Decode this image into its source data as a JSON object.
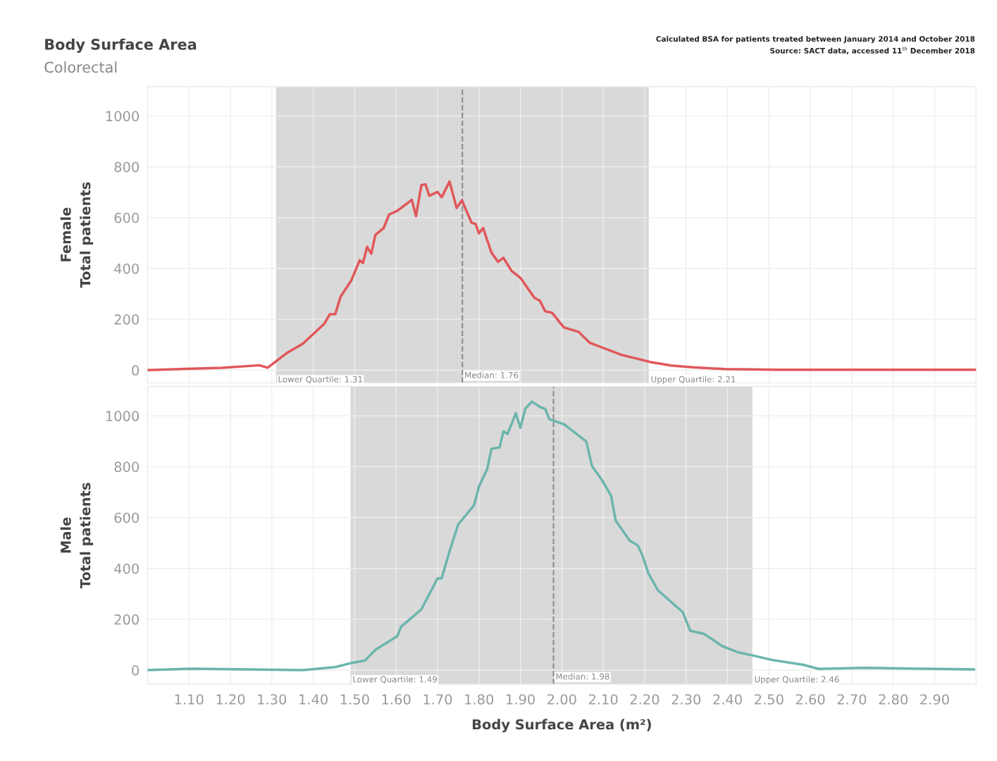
{
  "chart_data": [
    {
      "type": "line",
      "title": "Body Surface Area",
      "subtitle": "Colorectal",
      "ylabel": "Female\nTotal patients",
      "annotations": [
        "Calculated BSA for patients treated between January 2014 and October 2018",
        "Source: SACT data, accessed 11$^{th}$ December 2018",
        {
          "text": "Lower Quartile: 1.31",
          "x": 1.31,
          "y": 0
        },
        {
          "text": "Upper Quartile: 2.21",
          "x": 2.21,
          "y": 0
        }
      ],
      "series": [
        {
          "color": "#e15759",
          "x": [
            1.0,
            1.18,
            1.27,
            1.29,
            1.336,
            1.375,
            1.427,
            1.44,
            1.453,
            1.466,
            1.492,
            1.512,
            1.52,
            1.53,
            1.54,
            1.55,
            1.57,
            1.583,
            1.603,
            1.638,
            1.648,
            1.661,
            1.671,
            1.68,
            1.7,
            1.71,
            1.729,
            1.746,
            1.759,
            1.782,
            1.792,
            1.8,
            1.81,
            1.83,
            1.846,
            1.859,
            1.879,
            1.9,
            1.934,
            1.947,
            1.96,
            1.976,
            2.005,
            2.041,
            2.067,
            2.11,
            2.144,
            2.179,
            2.213,
            2.264,
            2.316,
            2.393,
            2.52,
            3.0
          ],
          "values": [
            0,
            9,
            19,
            9,
            67,
            104,
            183,
            220,
            220,
            289,
            353,
            432,
            421,
            485,
            458,
            532,
            559,
            612,
            627,
            670,
            606,
            728,
            731,
            686,
            701,
            680,
            742,
            638,
            668,
            580,
            575,
            538,
            559,
            463,
            426,
            442,
            390,
            363,
            284,
            273,
            231,
            226,
            168,
            150,
            108,
            81,
            60,
            46,
            32,
            18,
            11,
            4,
            1,
            1
          ]
        }
      ],
      "bands": [
        {
          "axis": "x",
          "from": 1.31,
          "to": 2.21,
          "color": "#d9d9d9"
        }
      ],
      "ref_lines": [
        {
          "axis": "x",
          "value": 1.76,
          "label": "Median: 1.76",
          "color": "#8c8c8c",
          "line_style": "dashed"
        }
      ],
      "xlim": [
        1.0,
        3.0
      ],
      "ylim": [
        -50,
        1115
      ],
      "xticks": [
        {
          "value": 1.1,
          "label": null
        },
        {
          "value": 1.2,
          "label": null
        },
        {
          "value": 1.3,
          "label": null
        },
        {
          "value": 1.4,
          "label": null
        },
        {
          "value": 1.5,
          "label": null
        },
        {
          "value": 1.6,
          "label": null
        },
        {
          "value": 1.7,
          "label": null
        },
        {
          "value": 1.8,
          "label": null
        },
        {
          "value": 1.9,
          "label": null
        },
        {
          "value": 2.0,
          "label": null
        },
        {
          "value": 2.1,
          "label": null
        },
        {
          "value": 2.2,
          "label": null
        },
        {
          "value": 2.3,
          "label": null
        },
        {
          "value": 2.4,
          "label": null
        },
        {
          "value": 2.5,
          "label": null
        },
        {
          "value": 2.6,
          "label": null
        },
        {
          "value": 2.7,
          "label": null
        },
        {
          "value": 2.8,
          "label": null
        },
        {
          "value": 2.9,
          "label": null
        }
      ],
      "yticks": [
        0,
        200,
        400,
        600,
        800,
        1000
      ],
      "grid": true,
      "tick_labels": "y",
      "marker": "none",
      "line_style": "solid"
    },
    {
      "type": "line",
      "xlabel": "Body Surface Area (m²)",
      "ylabel": "Male\nTotal patients",
      "annotations": [
        {
          "text": "Lower Quartile: 1.49",
          "x": 1.49,
          "y": 0
        },
        {
          "text": "Upper Quartile: 2.46",
          "x": 2.46,
          "y": 0
        }
      ],
      "series": [
        {
          "color": "#6bb5ad",
          "x": [
            1.0,
            1.107,
            1.375,
            1.453,
            1.489,
            1.525,
            1.55,
            1.603,
            1.612,
            1.661,
            1.7,
            1.71,
            1.73,
            1.75,
            1.788,
            1.8,
            1.82,
            1.83,
            1.85,
            1.859,
            1.869,
            1.889,
            1.9,
            1.912,
            1.928,
            1.947,
            1.96,
            1.97,
            2.006,
            2.059,
            2.073,
            2.097,
            2.119,
            2.13,
            2.164,
            2.183,
            2.194,
            2.209,
            2.232,
            2.262,
            2.292,
            2.31,
            2.343,
            2.388,
            2.426,
            2.46,
            2.508,
            2.583,
            2.62,
            2.733,
            2.995
          ],
          "values": [
            0,
            6,
            0,
            12,
            27,
            38,
            80,
            134,
            171,
            239,
            361,
            361,
            473,
            573,
            648,
            722,
            791,
            870,
            876,
            939,
            929,
            1010,
            953,
            1029,
            1056,
            1035,
            1027,
            987,
            966,
            899,
            802,
            747,
            686,
            588,
            509,
            491,
            454,
            381,
            314,
            271,
            228,
            155,
            143,
            94,
            70,
            58,
            40,
            21,
            5,
            9,
            3
          ]
        }
      ],
      "bands": [
        {
          "axis": "x",
          "from": 1.49,
          "to": 2.46,
          "color": "#d9d9d9"
        }
      ],
      "ref_lines": [
        {
          "axis": "x",
          "value": 1.98,
          "label": "Median: 1.98",
          "color": "#8c8c8c",
          "line_style": "dashed"
        }
      ],
      "xlim": [
        1.0,
        3.0
      ],
      "ylim": [
        -55,
        1115
      ],
      "xticks": [
        {
          "value": 1.1,
          "label": "1.10"
        },
        {
          "value": 1.2,
          "label": "1.20"
        },
        {
          "value": 1.3,
          "label": "1.30"
        },
        {
          "value": 1.4,
          "label": "1.40"
        },
        {
          "value": 1.5,
          "label": "1.50"
        },
        {
          "value": 1.6,
          "label": "1.60"
        },
        {
          "value": 1.7,
          "label": "1.70"
        },
        {
          "value": 1.8,
          "label": "1.80"
        },
        {
          "value": 1.9,
          "label": "1.90"
        },
        {
          "value": 2.0,
          "label": "2.00"
        },
        {
          "value": 2.1,
          "label": "2.10"
        },
        {
          "value": 2.2,
          "label": "2.20"
        },
        {
          "value": 2.3,
          "label": "2.30"
        },
        {
          "value": 2.4,
          "label": "2.40"
        },
        {
          "value": 2.5,
          "label": "2.50"
        },
        {
          "value": 2.6,
          "label": "2.60"
        },
        {
          "value": 2.7,
          "label": "2.70"
        },
        {
          "value": 2.8,
          "label": "2.80"
        },
        {
          "value": 2.9,
          "label": "2.90"
        }
      ],
      "yticks": [
        0,
        200,
        400,
        600,
        800,
        1000
      ],
      "grid": true,
      "marker": "none",
      "line_style": "solid"
    }
  ]
}
